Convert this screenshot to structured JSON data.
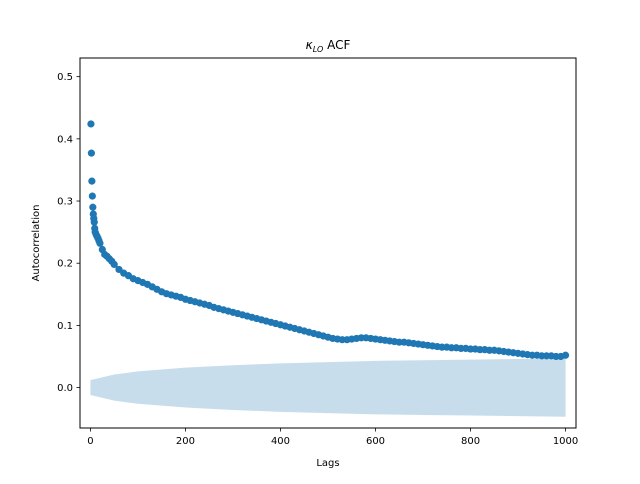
{
  "chart_data": {
    "type": "scatter",
    "title": "κ_LO ACF",
    "title_main": "κ",
    "title_sub": "LO",
    "title_rest": " ACF",
    "xlabel": "Lags",
    "ylabel": "Autocorrelation",
    "xlim": [
      -22,
      1022
    ],
    "ylim": [
      -0.065,
      0.53
    ],
    "xticks": [
      0,
      200,
      400,
      600,
      800,
      1000
    ],
    "xtick_labels": [
      "0",
      "200",
      "400",
      "600",
      "800",
      "1000"
    ],
    "yticks": [
      0.0,
      0.1,
      0.2,
      0.3,
      0.4,
      0.5
    ],
    "ytick_labels": [
      "0.0",
      "0.1",
      "0.2",
      "0.3",
      "0.4",
      "0.5"
    ],
    "grid": false,
    "legend": "none",
    "series": [
      {
        "kind": "markers",
        "color": "#1f77b4",
        "x": [
          1,
          2,
          3,
          4,
          5,
          6,
          7,
          8,
          9,
          10,
          12,
          14,
          16,
          18,
          20,
          25,
          30,
          35,
          40,
          45,
          50,
          60,
          70,
          80,
          90,
          100,
          110,
          120,
          130,
          140,
          150,
          160,
          170,
          180,
          190,
          200,
          210,
          220,
          230,
          240,
          250,
          260,
          270,
          280,
          290,
          300,
          310,
          320,
          330,
          340,
          350,
          360,
          370,
          380,
          390,
          400,
          410,
          420,
          430,
          440,
          450,
          460,
          470,
          480,
          490,
          500,
          510,
          520,
          530,
          540,
          550,
          560,
          570,
          580,
          590,
          600,
          610,
          620,
          630,
          640,
          650,
          660,
          670,
          680,
          690,
          700,
          710,
          720,
          730,
          740,
          750,
          760,
          770,
          780,
          790,
          800,
          810,
          820,
          830,
          840,
          850,
          860,
          870,
          880,
          890,
          900,
          910,
          920,
          930,
          940,
          950,
          960,
          970,
          980,
          990,
          1000
        ],
        "y": [
          0.424,
          0.377,
          0.332,
          0.308,
          0.29,
          0.279,
          0.272,
          0.266,
          0.256,
          0.25,
          0.246,
          0.243,
          0.24,
          0.236,
          0.232,
          0.222,
          0.214,
          0.211,
          0.207,
          0.203,
          0.198,
          0.19,
          0.184,
          0.18,
          0.175,
          0.172,
          0.169,
          0.166,
          0.162,
          0.158,
          0.154,
          0.151,
          0.149,
          0.147,
          0.145,
          0.142,
          0.14,
          0.138,
          0.136,
          0.134,
          0.132,
          0.129,
          0.127,
          0.125,
          0.123,
          0.121,
          0.119,
          0.117,
          0.115,
          0.113,
          0.111,
          0.109,
          0.107,
          0.105,
          0.103,
          0.101,
          0.099,
          0.097,
          0.095,
          0.093,
          0.091,
          0.089,
          0.087,
          0.085,
          0.083,
          0.081,
          0.079,
          0.078,
          0.077,
          0.077,
          0.078,
          0.079,
          0.08,
          0.08,
          0.079,
          0.078,
          0.077,
          0.076,
          0.075,
          0.074,
          0.073,
          0.073,
          0.072,
          0.071,
          0.07,
          0.069,
          0.068,
          0.067,
          0.066,
          0.065,
          0.065,
          0.064,
          0.064,
          0.063,
          0.063,
          0.062,
          0.062,
          0.061,
          0.061,
          0.06,
          0.06,
          0.059,
          0.058,
          0.057,
          0.056,
          0.055,
          0.054,
          0.053,
          0.052,
          0.052,
          0.051,
          0.051,
          0.051,
          0.05,
          0.05,
          0.052
        ]
      },
      {
        "kind": "confidence-band",
        "color": "#1f77b4",
        "opacity": 0.25,
        "x": [
          0,
          50,
          100,
          200,
          300,
          400,
          500,
          600,
          700,
          800,
          900,
          1000
        ],
        "upper": [
          0.012,
          0.021,
          0.026,
          0.032,
          0.036,
          0.039,
          0.041,
          0.043,
          0.044,
          0.045,
          0.046,
          0.047
        ],
        "lower": [
          -0.012,
          -0.021,
          -0.026,
          -0.032,
          -0.036,
          -0.039,
          -0.041,
          -0.043,
          -0.044,
          -0.045,
          -0.046,
          -0.047
        ]
      }
    ]
  }
}
